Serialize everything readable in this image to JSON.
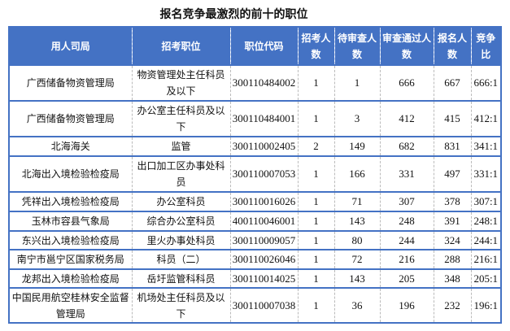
{
  "title": "报名竞争最激烈的前十的职位",
  "columns": [
    "用人司局",
    "招考职位",
    "职位代码",
    "招考人数",
    "待审查人数",
    "审查通过人数",
    "报名人数",
    "竞争比"
  ],
  "rows": [
    [
      "广西储备物资管理局",
      "物资管理处主任科员及以下",
      "300110484002",
      "1",
      "1",
      "666",
      "667",
      "666:1"
    ],
    [
      "广西储备物资管理局",
      "办公室主任科员及以下",
      "300110484001",
      "1",
      "3",
      "412",
      "415",
      "412:1"
    ],
    [
      "北海海关",
      "监管",
      "300110002405",
      "2",
      "149",
      "682",
      "831",
      "341:1"
    ],
    [
      "北海出入境检验检疫局",
      "出口加工区办事处科员",
      "300110007053",
      "1",
      "166",
      "331",
      "497",
      "331:1"
    ],
    [
      "凭祥出入境检验检疫局",
      "办公室科员",
      "300110016026",
      "1",
      "71",
      "307",
      "378",
      "307:1"
    ],
    [
      "玉林市容县气象局",
      "综合办公室科员",
      "400110046001",
      "1",
      "143",
      "248",
      "391",
      "248:1"
    ],
    [
      "东兴出入境检验检疫局",
      "里火办事处科员",
      "300110009057",
      "1",
      "80",
      "244",
      "324",
      "244:1"
    ],
    [
      "南宁市邕宁区国家税务局",
      "科员（二）",
      "300110026046",
      "1",
      "72",
      "216",
      "288",
      "216:1"
    ],
    [
      "龙邦出入境检验检疫局",
      "岳圩监管科科员",
      "300110014025",
      "1",
      "143",
      "205",
      "348",
      "205:1"
    ],
    [
      "中国民用航空桂林安全监督管理局",
      "机场处主任科员及以下",
      "300110007038",
      "1",
      "36",
      "196",
      "232",
      "196:1"
    ]
  ],
  "colors": {
    "header_bg": "#4472c4",
    "border": "#4472c4"
  }
}
